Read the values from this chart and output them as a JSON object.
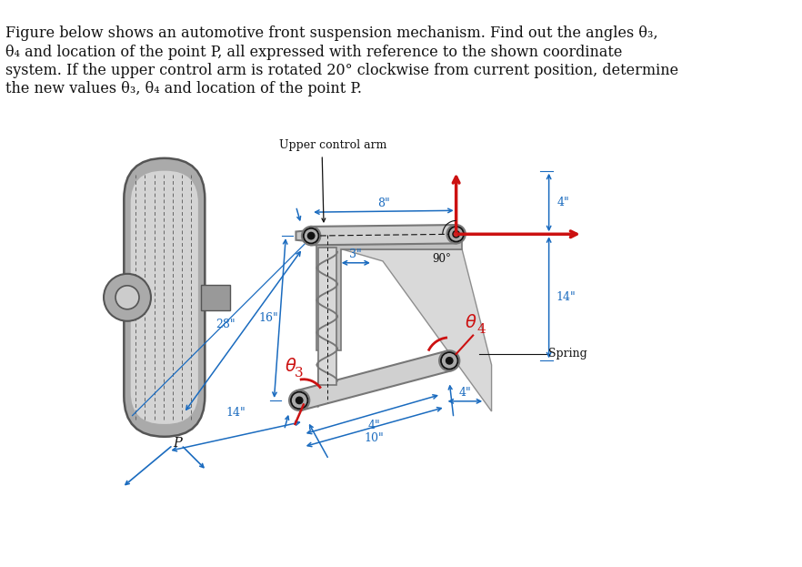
{
  "background_color": "#ffffff",
  "text_lines": [
    "Figure below shows an automotive front suspension mechanism. Find out the angles θ₃,",
    "θ₄ and location of the point P, all expressed with reference to the shown coordinate",
    "system. If the upper control arm is rotated 20° clockwise from current position, determine",
    "the new values θ₃, θ₄ and location of the point P."
  ],
  "dim_color": "#1a6bbf",
  "red_color": "#cc1111",
  "black": "#111111",
  "gray_light": "#cccccc",
  "gray_med": "#aaaaaa",
  "gray_dark": "#777777",
  "gray_vdark": "#555555",
  "gray_arm": "#b8b8b8",
  "gray_knuckle": "#c5c5c5",
  "text_fontsize": 11.5,
  "dim_fontsize": 9.0,
  "label_fontsize": 9.0,
  "upper_ctrl_arm_label": "Upper control arm",
  "spring_label": "Spring",
  "p_label": "P",
  "dim_8": "8\"",
  "dim_4top": "4\"",
  "dim_3": "3\"",
  "dim_16": "16\"",
  "dim_28": "28\"",
  "dim_14right": "14\"",
  "dim_4bot": "4\"",
  "dim_14bot": "14\"",
  "dim_10": "10\"",
  "label_90": "90°"
}
